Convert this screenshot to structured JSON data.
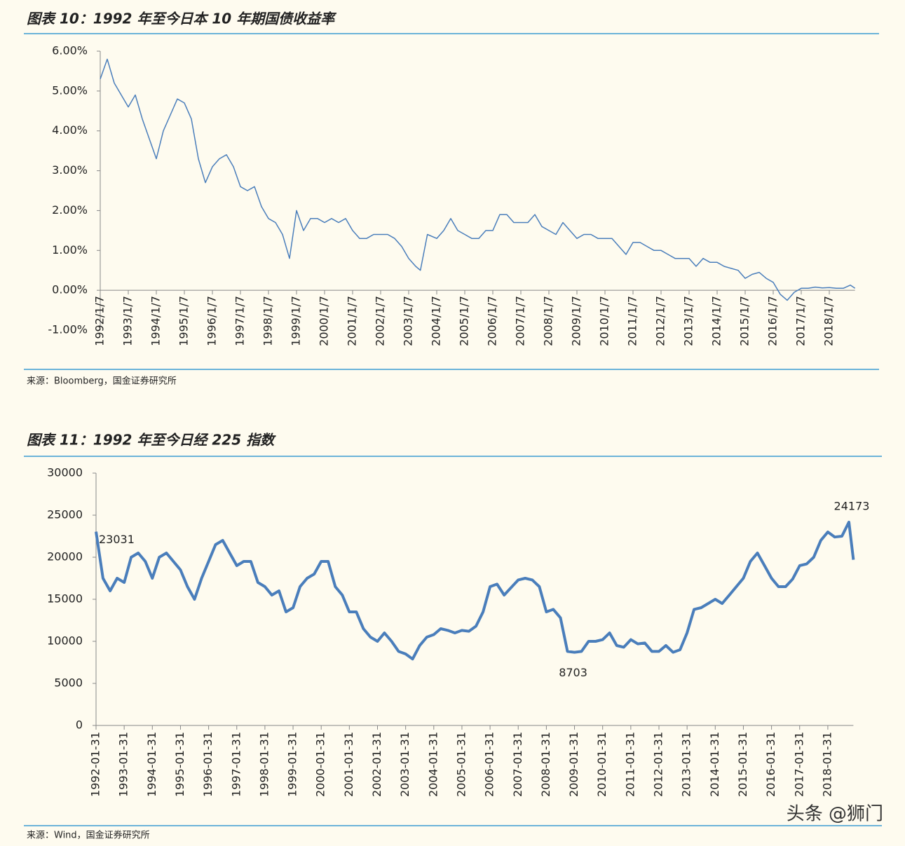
{
  "chart_data": [
    {
      "type": "line",
      "title": "图表 10：1992 年至今日本 10 年期国债收益率",
      "source": "来源：Bloomberg，国金证券研究所",
      "color": "#4a7ebb",
      "ylim": [
        -1,
        6
      ],
      "yticks": [
        {
          "value": 6,
          "label": "6.00%"
        },
        {
          "value": 5,
          "label": "5.00%"
        },
        {
          "value": 4,
          "label": "4.00%"
        },
        {
          "value": 3,
          "label": "3.00%"
        },
        {
          "value": 2,
          "label": "2.00%"
        },
        {
          "value": 1,
          "label": "1.00%"
        },
        {
          "value": 0,
          "label": "0.00%"
        },
        {
          "value": -1,
          "label": "-1.00%"
        }
      ],
      "xticks": [
        "1992/1/7",
        "1993/1/7",
        "1994/1/7",
        "1995/1/7",
        "1996/1/7",
        "1997/1/7",
        "1998/1/7",
        "1999/1/7",
        "2000/1/7",
        "2001/1/7",
        "2002/1/7",
        "2003/1/7",
        "2004/1/7",
        "2005/1/7",
        "2006/1/7",
        "2007/1/7",
        "2008/1/7",
        "2009/1/7",
        "2010/1/7",
        "2011/1/7",
        "2012/1/7",
        "2013/1/7",
        "2014/1/7",
        "2015/1/7",
        "2016/1/7",
        "2017/1/7",
        "2018/1/7"
      ],
      "x": [
        "1992/1/7",
        "1992/4/7",
        "1992/7/7",
        "1993/1/7",
        "1993/4/7",
        "1993/7/7",
        "1993/10/7",
        "1994/1/7",
        "1994/4/7",
        "1994/7/7",
        "1994/10/7",
        "1995/1/7",
        "1995/4/7",
        "1995/7/7",
        "1995/10/7",
        "1996/1/7",
        "1996/4/7",
        "1996/7/7",
        "1996/10/7",
        "1997/1/7",
        "1997/4/7",
        "1997/7/7",
        "1997/10/7",
        "1998/1/7",
        "1998/4/7",
        "1998/7/7",
        "1998/10/7",
        "1999/1/7",
        "1999/4/7",
        "1999/7/7",
        "1999/10/7",
        "2000/1/7",
        "2000/4/7",
        "2000/7/7",
        "2000/10/7",
        "2001/1/7",
        "2001/4/7",
        "2001/7/7",
        "2001/10/7",
        "2002/1/7",
        "2002/4/7",
        "2002/7/7",
        "2002/10/7",
        "2003/1/7",
        "2003/4/7",
        "2003/6/7",
        "2003/9/7",
        "2004/1/7",
        "2004/4/7",
        "2004/7/7",
        "2004/10/7",
        "2005/1/7",
        "2005/4/7",
        "2005/7/7",
        "2005/10/7",
        "2006/1/7",
        "2006/4/7",
        "2006/7/7",
        "2006/10/7",
        "2007/1/7",
        "2007/4/7",
        "2007/7/7",
        "2007/10/7",
        "2008/1/7",
        "2008/4/7",
        "2008/7/7",
        "2008/10/7",
        "2009/1/7",
        "2009/4/7",
        "2009/7/7",
        "2009/10/7",
        "2010/1/7",
        "2010/4/7",
        "2010/7/7",
        "2010/10/7",
        "2011/1/7",
        "2011/4/7",
        "2011/7/7",
        "2011/10/7",
        "2012/1/7",
        "2012/4/7",
        "2012/7/7",
        "2012/10/7",
        "2013/1/7",
        "2013/4/7",
        "2013/7/7",
        "2013/10/7",
        "2014/1/7",
        "2014/4/7",
        "2014/7/7",
        "2014/10/7",
        "2015/1/7",
        "2015/4/7",
        "2015/7/7",
        "2015/10/7",
        "2016/1/7",
        "2016/4/7",
        "2016/7/7",
        "2016/10/7",
        "2017/1/7",
        "2017/4/7",
        "2017/7/7",
        "2017/10/7",
        "2018/1/7",
        "2018/4/7",
        "2018/7/7",
        "2018/10/7",
        "2018/12/7"
      ],
      "values": [
        5.3,
        5.8,
        5.2,
        4.6,
        4.9,
        4.3,
        3.8,
        3.3,
        4.0,
        4.4,
        4.8,
        4.7,
        4.3,
        3.3,
        2.7,
        3.1,
        3.3,
        3.4,
        3.1,
        2.6,
        2.5,
        2.6,
        2.1,
        1.8,
        1.7,
        1.4,
        0.8,
        2.0,
        1.5,
        1.8,
        1.8,
        1.7,
        1.8,
        1.7,
        1.8,
        1.5,
        1.3,
        1.3,
        1.4,
        1.4,
        1.4,
        1.3,
        1.1,
        0.8,
        0.6,
        0.5,
        1.4,
        1.3,
        1.5,
        1.8,
        1.5,
        1.4,
        1.3,
        1.3,
        1.5,
        1.5,
        1.9,
        1.9,
        1.7,
        1.7,
        1.7,
        1.9,
        1.6,
        1.5,
        1.4,
        1.7,
        1.5,
        1.3,
        1.4,
        1.4,
        1.3,
        1.3,
        1.3,
        1.1,
        0.9,
        1.2,
        1.2,
        1.1,
        1.0,
        1.0,
        0.9,
        0.8,
        0.8,
        0.8,
        0.6,
        0.8,
        0.7,
        0.7,
        0.6,
        0.55,
        0.5,
        0.3,
        0.4,
        0.45,
        0.3,
        0.2,
        -0.1,
        -0.25,
        -0.05,
        0.05,
        0.05,
        0.08,
        0.06,
        0.07,
        0.05,
        0.05,
        0.13,
        0.05
      ]
    },
    {
      "type": "line",
      "title": "图表 11：1992 年至今日经 225 指数",
      "source": "来源：Wind，国金证券研究所",
      "color": "#4a7ebb",
      "ylim": [
        0,
        30000
      ],
      "yticks": [
        30000,
        25000,
        20000,
        15000,
        10000,
        5000,
        0
      ],
      "xticks": [
        "1992-01-31",
        "1993-01-31",
        "1994-01-31",
        "1995-01-31",
        "1996-01-31",
        "1997-01-31",
        "1998-01-31",
        "1999-01-31",
        "2000-01-31",
        "2001-01-31",
        "2002-01-31",
        "2003-01-31",
        "2004-01-31",
        "2005-01-31",
        "2006-01-31",
        "2007-01-31",
        "2008-01-31",
        "2009-01-31",
        "2010-01-31",
        "2011-01-31",
        "2012-01-31",
        "2013-01-31",
        "2014-01-31",
        "2015-01-31",
        "2016-01-31",
        "2017-01-31",
        "2018-01-31"
      ],
      "x": [
        "1992-01-31",
        "1992-04-30",
        "1992-07-31",
        "1992-10-31",
        "1993-01-31",
        "1993-04-30",
        "1993-07-31",
        "1993-10-31",
        "1994-01-31",
        "1994-04-30",
        "1994-07-31",
        "1994-10-31",
        "1995-01-31",
        "1995-04-30",
        "1995-07-31",
        "1995-10-31",
        "1996-01-31",
        "1996-04-30",
        "1996-07-31",
        "1996-10-31",
        "1997-01-31",
        "1997-04-30",
        "1997-07-31",
        "1997-10-31",
        "1998-01-31",
        "1998-04-30",
        "1998-07-31",
        "1998-10-31",
        "1999-01-31",
        "1999-04-30",
        "1999-07-31",
        "1999-10-31",
        "2000-01-31",
        "2000-04-30",
        "2000-07-31",
        "2000-10-31",
        "2001-01-31",
        "2001-04-30",
        "2001-07-31",
        "2001-10-31",
        "2002-01-31",
        "2002-04-30",
        "2002-07-31",
        "2002-10-31",
        "2003-01-31",
        "2003-04-30",
        "2003-07-31",
        "2003-10-31",
        "2004-01-31",
        "2004-04-30",
        "2004-07-31",
        "2004-10-31",
        "2005-01-31",
        "2005-04-30",
        "2005-07-31",
        "2005-10-31",
        "2006-01-31",
        "2006-04-30",
        "2006-07-31",
        "2006-10-31",
        "2007-01-31",
        "2007-04-30",
        "2007-07-31",
        "2007-10-31",
        "2008-01-31",
        "2008-04-30",
        "2008-07-31",
        "2008-10-31",
        "2009-01-31",
        "2009-04-30",
        "2009-07-31",
        "2009-10-31",
        "2010-01-31",
        "2010-04-30",
        "2010-07-31",
        "2010-10-31",
        "2011-01-31",
        "2011-04-30",
        "2011-07-31",
        "2011-10-31",
        "2012-01-31",
        "2012-04-30",
        "2012-07-31",
        "2012-10-31",
        "2013-01-31",
        "2013-04-30",
        "2013-07-31",
        "2013-10-31",
        "2014-01-31",
        "2014-04-30",
        "2014-07-31",
        "2014-10-31",
        "2015-01-31",
        "2015-04-30",
        "2015-07-31",
        "2015-10-31",
        "2016-01-31",
        "2016-04-30",
        "2016-07-31",
        "2016-10-31",
        "2017-01-31",
        "2017-04-30",
        "2017-07-31",
        "2017-10-31",
        "2018-01-31",
        "2018-04-30",
        "2018-07-31",
        "2018-10-31",
        "2018-12-28"
      ],
      "values": [
        23031,
        17500,
        16000,
        17500,
        17000,
        20000,
        20500,
        19500,
        17500,
        20000,
        20500,
        19500,
        18500,
        16500,
        15000,
        17500,
        19500,
        21500,
        22000,
        20500,
        19000,
        19500,
        19500,
        17000,
        16500,
        15500,
        16000,
        13500,
        14000,
        16500,
        17500,
        18000,
        19500,
        19500,
        16500,
        15500,
        13500,
        13500,
        11500,
        10500,
        10000,
        11000,
        10000,
        8800,
        8500,
        7900,
        9500,
        10500,
        10800,
        11500,
        11300,
        11000,
        11300,
        11200,
        11800,
        13500,
        16500,
        16800,
        15500,
        16400,
        17300,
        17500,
        17300,
        16500,
        13500,
        13800,
        12800,
        8800,
        8703,
        8800,
        10000,
        10000,
        10200,
        11000,
        9500,
        9300,
        10200,
        9700,
        9800,
        8800,
        8800,
        9500,
        8700,
        9000,
        11000,
        13800,
        14000,
        14500,
        15000,
        14500,
        15500,
        16500,
        17500,
        19500,
        20500,
        19000,
        17500,
        16500,
        16500,
        17400,
        19000,
        19200,
        20000,
        22000,
        23000,
        22400,
        22500,
        24173,
        19700
      ],
      "annotations": [
        {
          "x": "1992-01-31",
          "value": 23031
        },
        {
          "x": "2009-01-31",
          "value": 8703
        },
        {
          "x": "2018-10-31",
          "value": 24173
        }
      ]
    }
  ],
  "watermark": "头条 @狮门"
}
